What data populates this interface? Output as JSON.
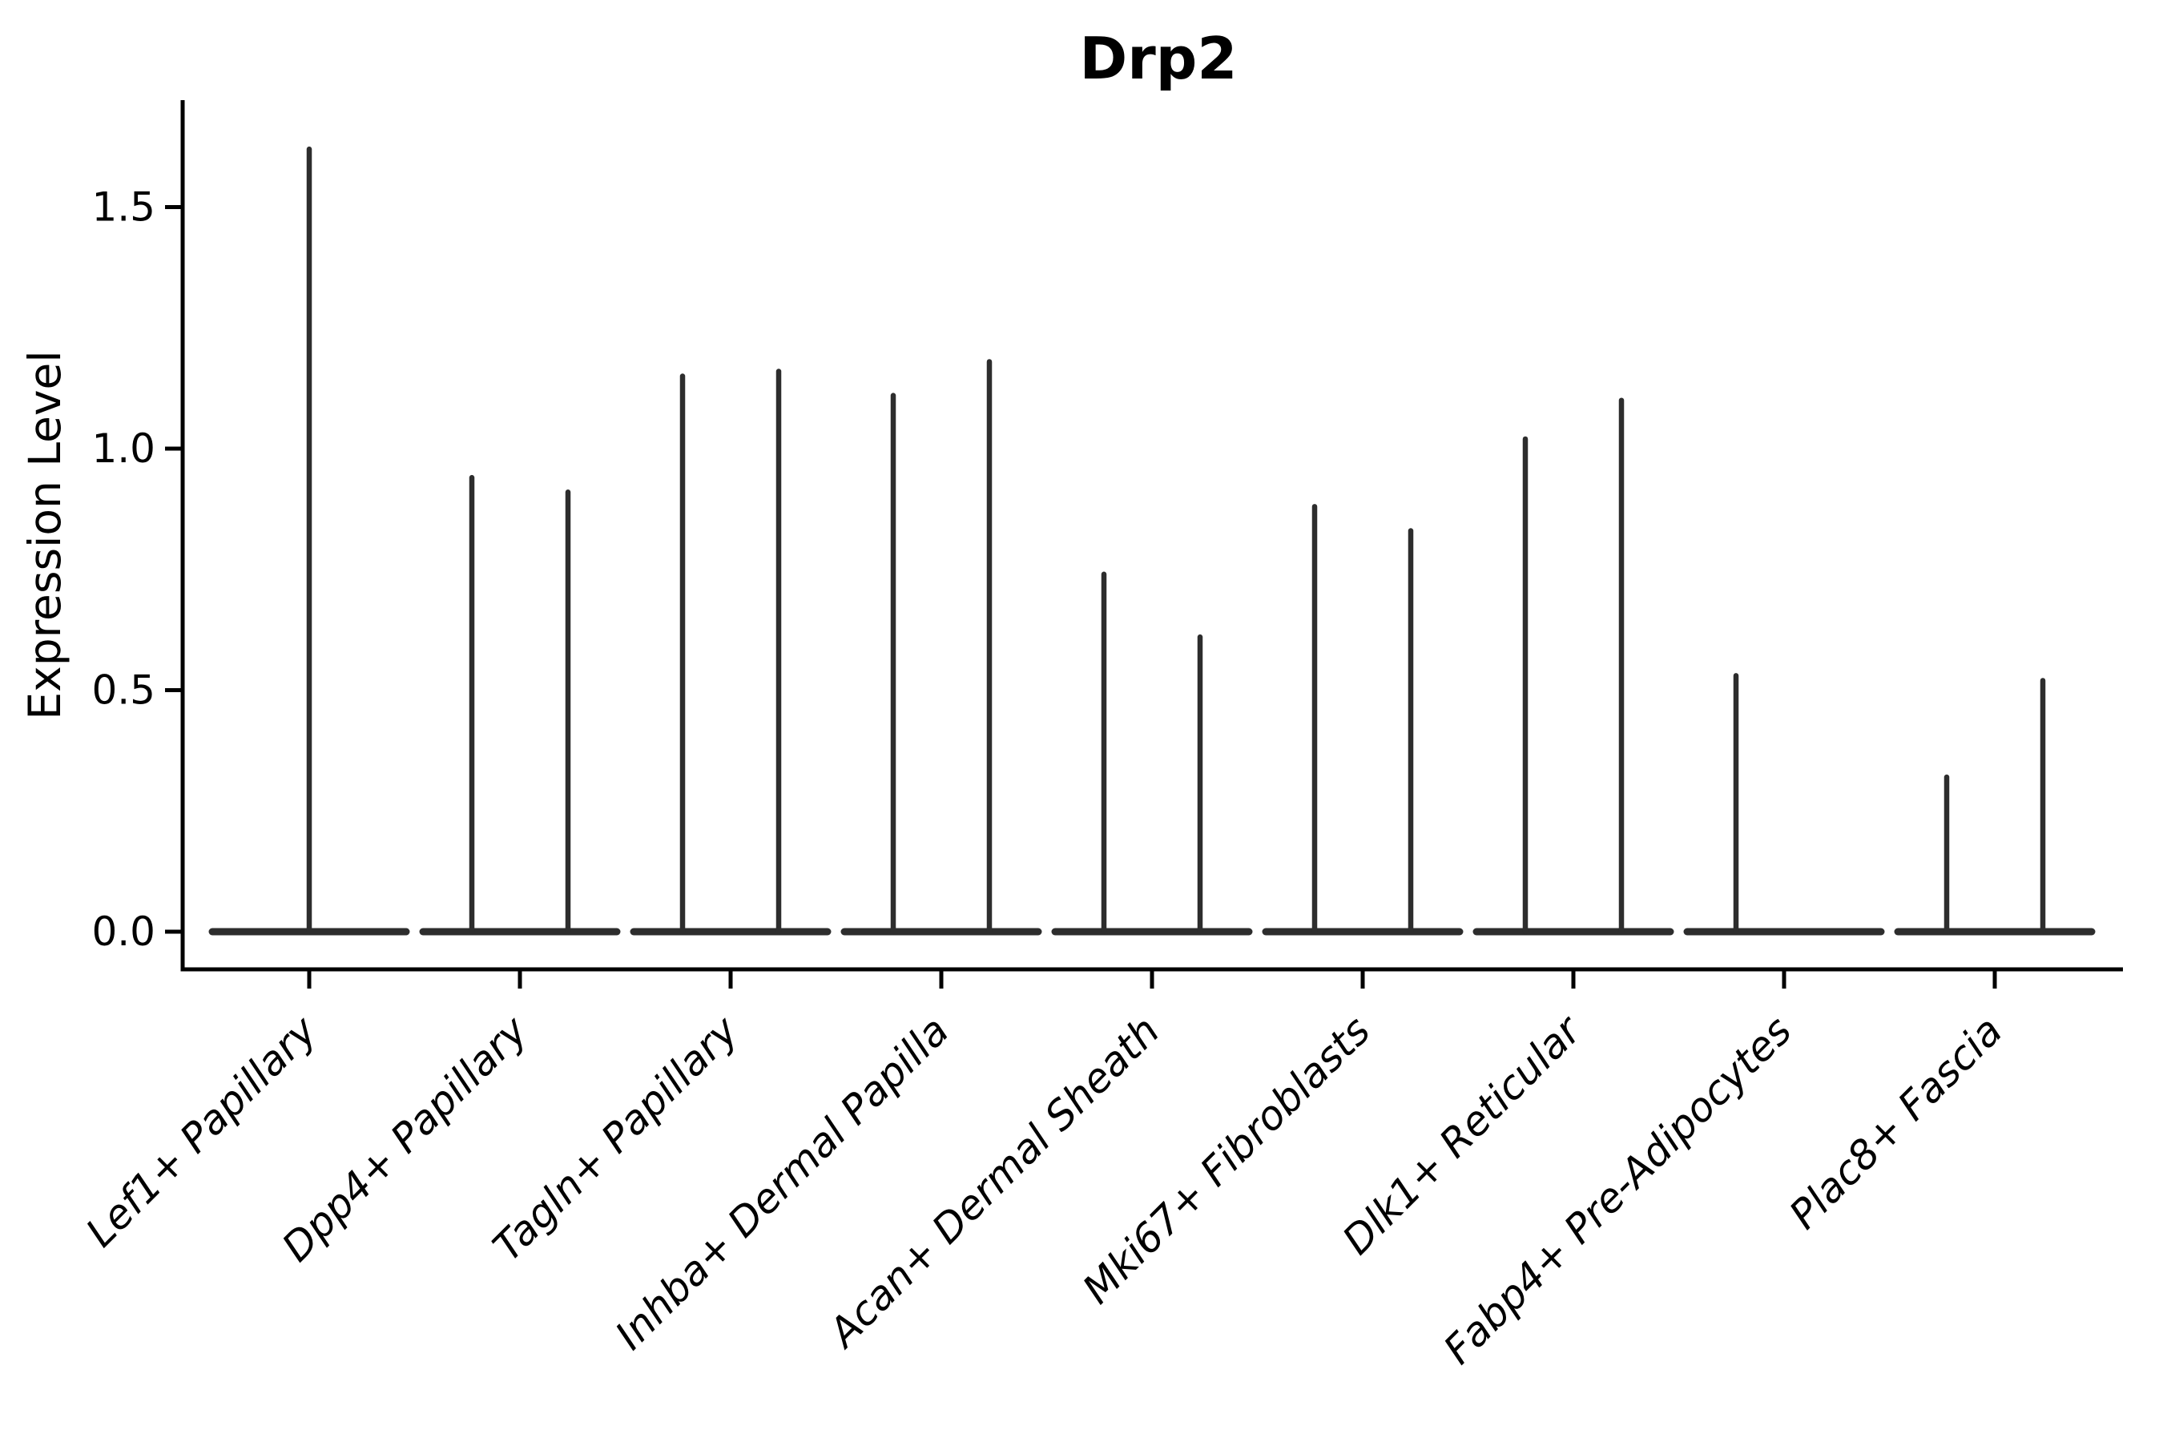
{
  "chart_data": {
    "type": "violin",
    "title": "Drp2",
    "ylabel": "Expression Level",
    "xlabel": "",
    "ytick_labels": [
      "0.0",
      "0.5",
      "1.0",
      "1.5"
    ],
    "ytick_values": [
      0.0,
      0.5,
      1.0,
      1.5
    ],
    "ylim": [
      -0.078,
      1.72
    ],
    "grid": false,
    "legend": "none",
    "x_label_rotation_deg": 45,
    "categories": [
      "Lef1+ Papillary",
      "Dpp4+ Papillary",
      "Tagln+ Papillary",
      "Inhba+ Dermal Papilla",
      "Acan+ Dermal Sheath",
      "Mki67+ Fibroblasts",
      "Dlk1+ Reticular",
      "Fabp4+ Pre-Adipocytes",
      "Plac8+ Fascia"
    ],
    "violins": [
      {
        "category": "Lef1+ Papillary",
        "spikes": [
          {
            "pos": "center",
            "max": 1.62
          }
        ]
      },
      {
        "category": "Dpp4+ Papillary",
        "spikes": [
          {
            "pos": "left",
            "max": 0.94
          },
          {
            "pos": "right",
            "max": 0.91
          }
        ]
      },
      {
        "category": "Tagln+ Papillary",
        "spikes": [
          {
            "pos": "left",
            "max": 1.15
          },
          {
            "pos": "right",
            "max": 1.16
          }
        ]
      },
      {
        "category": "Inhba+ Dermal Papilla",
        "spikes": [
          {
            "pos": "left",
            "max": 1.11
          },
          {
            "pos": "right",
            "max": 1.18
          }
        ]
      },
      {
        "category": "Acan+ Dermal Sheath",
        "spikes": [
          {
            "pos": "left",
            "max": 0.74
          },
          {
            "pos": "right",
            "max": 0.61
          }
        ]
      },
      {
        "category": "Mki67+ Fibroblasts",
        "spikes": [
          {
            "pos": "left",
            "max": 0.88
          },
          {
            "pos": "right",
            "max": 0.83
          }
        ]
      },
      {
        "category": "Dlk1+ Reticular",
        "spikes": [
          {
            "pos": "left",
            "max": 1.02
          },
          {
            "pos": "right",
            "max": 1.1
          }
        ]
      },
      {
        "category": "Fabp4+ Pre-Adipocytes",
        "spikes": [
          {
            "pos": "left",
            "max": 0.53
          }
        ]
      },
      {
        "category": "Plac8+ Fascia",
        "spikes": [
          {
            "pos": "left",
            "max": 0.32
          },
          {
            "pos": "right",
            "max": 0.52
          }
        ]
      }
    ],
    "baseline_value": 0.0,
    "colors": {
      "violin_stroke": "#2d2d2d",
      "axis": "#000000",
      "text": "#000000",
      "background": "#ffffff"
    }
  }
}
